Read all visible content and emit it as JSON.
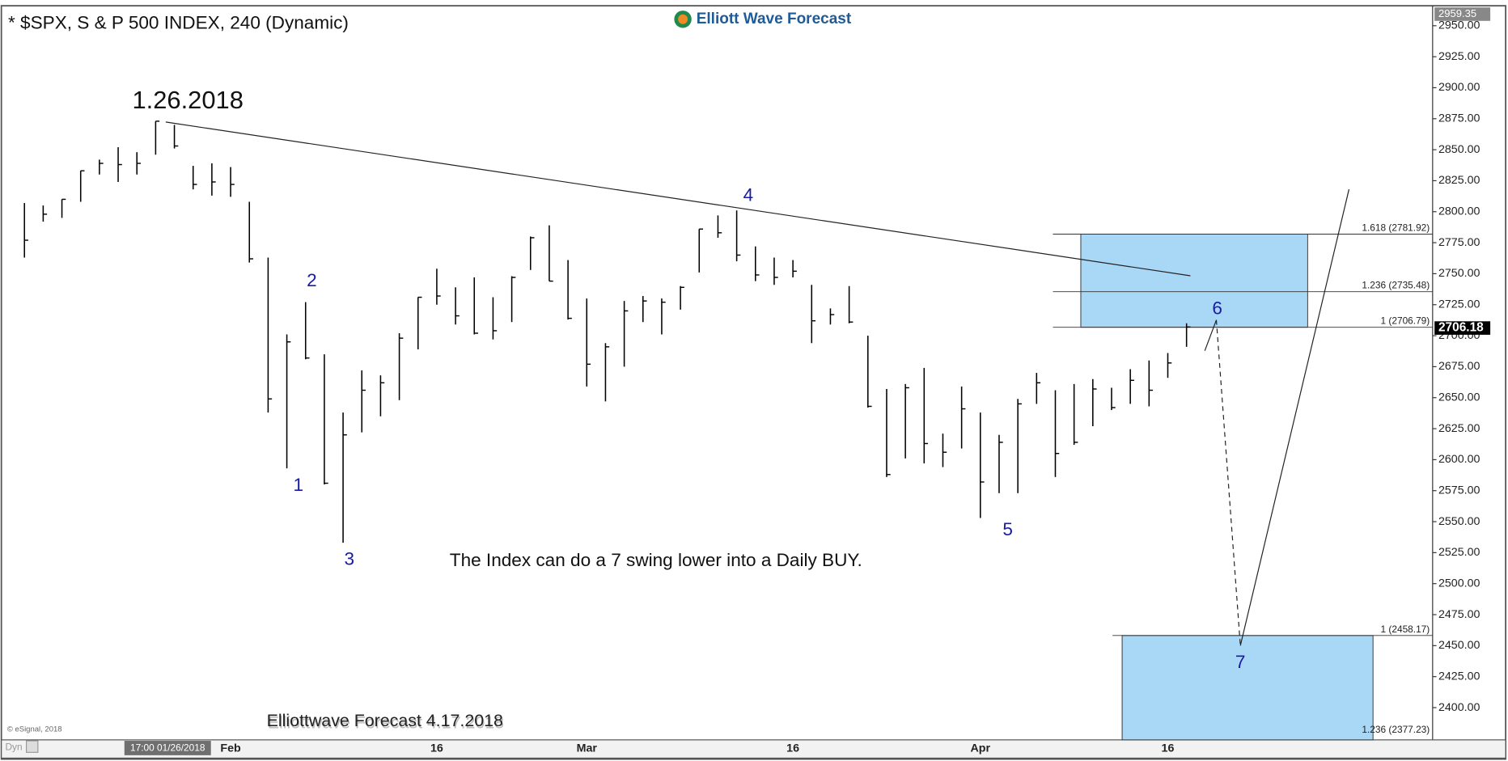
{
  "chart_data": {
    "type": "hlc",
    "title": "* $SPX, S & P 500 INDEX, 240 (Dynamic)",
    "logo": "Elliott Wave Forecast",
    "peak_label": "1.26.2018",
    "annotation": "The Index can do a 7 swing lower into a Daily BUY.",
    "footer": "Elliottwave Forecast 4.17.2018",
    "source": "© eSignal, 2018",
    "mode": "Dyn",
    "cursor_time": "17:00 01/26/2018",
    "wave_labels": [
      "1",
      "2",
      "3",
      "4",
      "5",
      "6",
      "7"
    ],
    "bar_color": "#000000",
    "zone_color": "#a9d8f7",
    "categories": [
      null,
      null,
      null,
      null,
      null,
      null,
      null,
      null,
      null,
      null,
      null,
      "Feb",
      null,
      null,
      null,
      null,
      null,
      null,
      null,
      null,
      null,
      null,
      "16",
      null,
      null,
      null,
      null,
      null,
      null,
      null,
      "Mar",
      null,
      null,
      null,
      null,
      null,
      null,
      null,
      null,
      null,
      null,
      "16",
      null,
      null,
      null,
      null,
      null,
      null,
      null,
      null,
      null,
      "Apr",
      null,
      null,
      null,
      null,
      null,
      null,
      null,
      null,
      null,
      "16",
      null
    ],
    "high": [
      2807,
      2805,
      2810,
      2833,
      2842,
      2852,
      2848,
      2873,
      2870,
      2837,
      2839,
      2836,
      2808,
      2763,
      2701,
      2727,
      2685,
      2638,
      2672,
      2668,
      2702,
      2731,
      2754,
      2739,
      2747,
      2731,
      2748,
      2780,
      2789,
      2761,
      2730,
      2694,
      2728,
      2732,
      2730,
      2740,
      2786,
      2797,
      2801,
      2772,
      2763,
      2761,
      2741,
      2722,
      2740,
      2700,
      2657,
      2661,
      2674,
      2621,
      2659,
      2638,
      2620,
      2649,
      2670,
      2656,
      2661,
      2665,
      2658,
      2673,
      2680,
      2686,
      2710
    ],
    "low": [
      2763,
      2792,
      2795,
      2808,
      2830,
      2824,
      2830,
      2846,
      2851,
      2818,
      2813,
      2812,
      2759,
      2638,
      2593,
      2681,
      2580,
      2533,
      2622,
      2635,
      2648,
      2689,
      2725,
      2709,
      2701,
      2697,
      2711,
      2753,
      2744,
      2713,
      2659,
      2647,
      2675,
      2711,
      2701,
      2721,
      2751,
      2779,
      2760,
      2744,
      2741,
      2747,
      2694,
      2709,
      2710,
      2642,
      2586,
      2601,
      2597,
      2594,
      2609,
      2553,
      2573,
      2573,
      2645,
      2586,
      2612,
      2627,
      2640,
      2645,
      2643,
      2666,
      2691
    ],
    "close": [
      2777,
      2798,
      2810,
      2833,
      2839,
      2838,
      2839,
      2873,
      2853,
      2822,
      2824,
      2822,
      2762,
      2649,
      2695,
      2682,
      2581,
      2620,
      2656,
      2662,
      2698,
      2731,
      2732,
      2716,
      2702,
      2704,
      2747,
      2779,
      2744,
      2714,
      2677,
      2691,
      2720,
      2728,
      2727,
      2739,
      2786,
      2783,
      2765,
      2749,
      2747,
      2752,
      2712,
      2717,
      2711,
      2643,
      2588,
      2658,
      2613,
      2606,
      2641,
      2582,
      2614,
      2645,
      2662,
      2605,
      2614,
      2657,
      2642,
      2664,
      2656,
      2678,
      2707
    ],
    "ylim": [
      2374,
      2963
    ],
    "yticks": [
      {
        "value": 2400,
        "label": "2400.00"
      },
      {
        "value": 2425,
        "label": "2425.00"
      },
      {
        "value": 2450,
        "label": "2450.00"
      },
      {
        "value": 2475,
        "label": "2475.00"
      },
      {
        "value": 2500,
        "label": "2500.00"
      },
      {
        "value": 2525,
        "label": "2525.00"
      },
      {
        "value": 2550,
        "label": "2550.00"
      },
      {
        "value": 2575,
        "label": "2575.00"
      },
      {
        "value": 2600,
        "label": "2600.00"
      },
      {
        "value": 2625,
        "label": "2625.00"
      },
      {
        "value": 2650,
        "label": "2650.00"
      },
      {
        "value": 2675,
        "label": "2675.00"
      },
      {
        "value": 2700,
        "label": "2700.00"
      },
      {
        "value": 2725,
        "label": "2725.00"
      },
      {
        "value": 2750,
        "label": "2750.00"
      },
      {
        "value": 2775,
        "label": "2775.00"
      },
      {
        "value": 2800,
        "label": "2800.00"
      },
      {
        "value": 2825,
        "label": "2825.00"
      },
      {
        "value": 2850,
        "label": "2850.00"
      },
      {
        "value": 2875,
        "label": "2875.00"
      },
      {
        "value": 2900,
        "label": "2900.00"
      },
      {
        "value": 2925,
        "label": "2925.00"
      },
      {
        "value": 2950,
        "label": "2950.00"
      }
    ],
    "price_tags": [
      2959.35,
      2706.18
    ],
    "fib_levels": [
      {
        "value": 2781.92,
        "label": "1.618 (2781.92)"
      },
      {
        "value": 2735.48,
        "label": "1.236 (2735.48)"
      },
      {
        "value": 2706.79,
        "label": "1 (2706.79)"
      },
      {
        "value": 2458.17,
        "label": "1 (2458.17)"
      },
      {
        "value": 2377.23,
        "label": "1.236 (2377.23)"
      }
    ]
  }
}
